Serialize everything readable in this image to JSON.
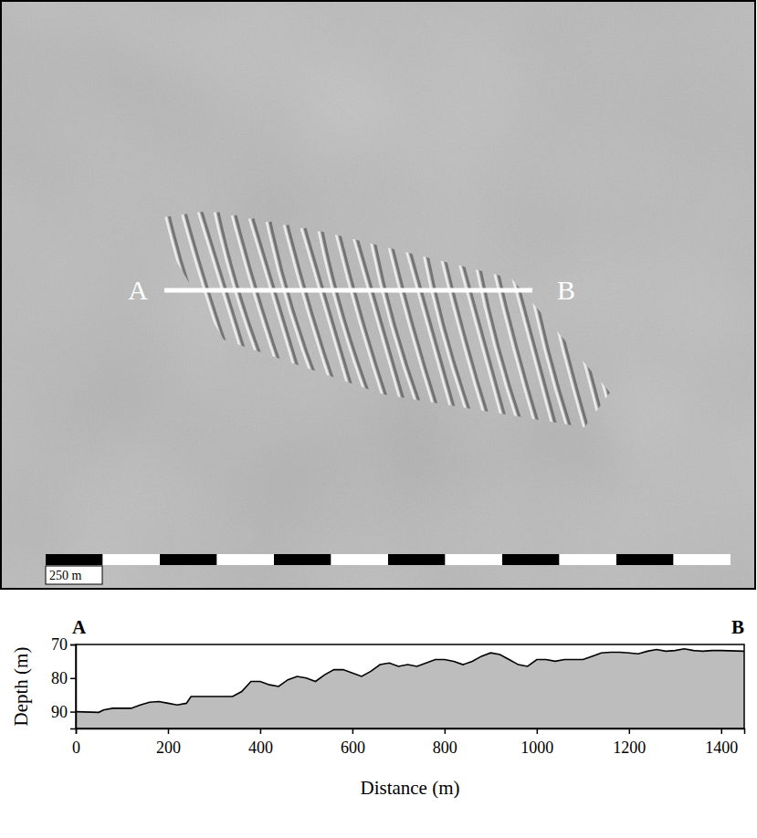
{
  "image": {
    "section_labels": [
      "A",
      "B"
    ],
    "scale_bar_label": "250 m"
  },
  "chart_data": {
    "type": "area",
    "annotations": [
      "A",
      "B"
    ],
    "x_label": "Distance (m)",
    "y_label": "Depth (m)",
    "x": [
      0,
      50,
      60,
      80,
      120,
      140,
      160,
      180,
      200,
      220,
      240,
      250,
      280,
      340,
      360,
      380,
      400,
      420,
      440,
      460,
      480,
      500,
      520,
      540,
      560,
      580,
      600,
      620,
      640,
      660,
      680,
      700,
      720,
      740,
      760,
      780,
      800,
      820,
      840,
      860,
      880,
      900,
      920,
      940,
      960,
      980,
      1000,
      1020,
      1040,
      1060,
      1080,
      1100,
      1120,
      1140,
      1160,
      1180,
      1200,
      1220,
      1240,
      1260,
      1280,
      1300,
      1320,
      1340,
      1360,
      1380,
      1400,
      1450
    ],
    "values": [
      90,
      90.2,
      89.5,
      89,
      89,
      88,
      87.2,
      87,
      87.5,
      88,
      87.5,
      85.5,
      85.5,
      85.5,
      84,
      81,
      81,
      82,
      82.5,
      80.5,
      79.5,
      80,
      81,
      79,
      77.5,
      77.5,
      78.5,
      79.5,
      78,
      76,
      75.5,
      76.5,
      76,
      76.5,
      75.5,
      74.5,
      74.5,
      75,
      76,
      75,
      73.5,
      72.5,
      73,
      74.5,
      76,
      76.5,
      74.5,
      74.5,
      75,
      74.5,
      74.5,
      74.5,
      73.5,
      72.5,
      72.3,
      72.3,
      72.5,
      72.8,
      72,
      71.5,
      72,
      71.8,
      71.3,
      71.8,
      72,
      71.8,
      71.8,
      72
    ],
    "color": "#bdbdbd",
    "xlim": [
      0,
      1450
    ],
    "ylim": [
      70,
      95
    ],
    "xticks": [
      0,
      200,
      400,
      600,
      800,
      1000,
      1200,
      1400
    ],
    "yticks": [
      70,
      80,
      90
    ],
    "grid": false
  }
}
